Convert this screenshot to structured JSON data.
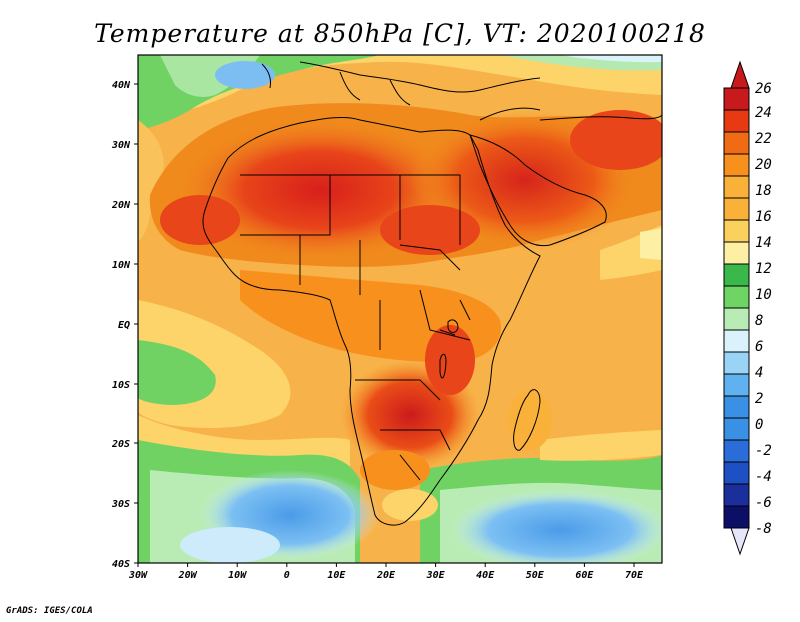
{
  "title": "Temperature at 850hPa [C], VT: 2020100218",
  "footer": "GrADS: IGES/COLA",
  "map": {
    "lon_ticks": [
      "30W",
      "20W",
      "10W",
      "0",
      "10E",
      "20E",
      "30E",
      "40E",
      "50E",
      "60E",
      "70E"
    ],
    "lat_ticks": [
      "40N",
      "30N",
      "20N",
      "10N",
      "EQ",
      "10S",
      "20S",
      "30S",
      "40S"
    ]
  },
  "colorbar": {
    "labels": [
      "26",
      "24",
      "22",
      "20",
      "18",
      "16",
      "14",
      "12",
      "10",
      "8",
      "6",
      "4",
      "2",
      "0",
      "-2",
      "-4",
      "-6",
      "-8"
    ],
    "colors": [
      "#c8191d",
      "#e83a12",
      "#f06b14",
      "#f7901c",
      "#f9b13a",
      "#fbd15e",
      "#fdf0a5",
      "#3ab84c",
      "#6ed463",
      "#b9ecb5",
      "#d9f2fb",
      "#99d4f7",
      "#5fb1ef",
      "#3a90e4",
      "#2a6dd8",
      "#1f4fc4",
      "#1a2f9c",
      "#0b1066"
    ],
    "top_arrow_color": "#c8191d",
    "bottom_arrow_color": "#e6e6fb"
  }
}
